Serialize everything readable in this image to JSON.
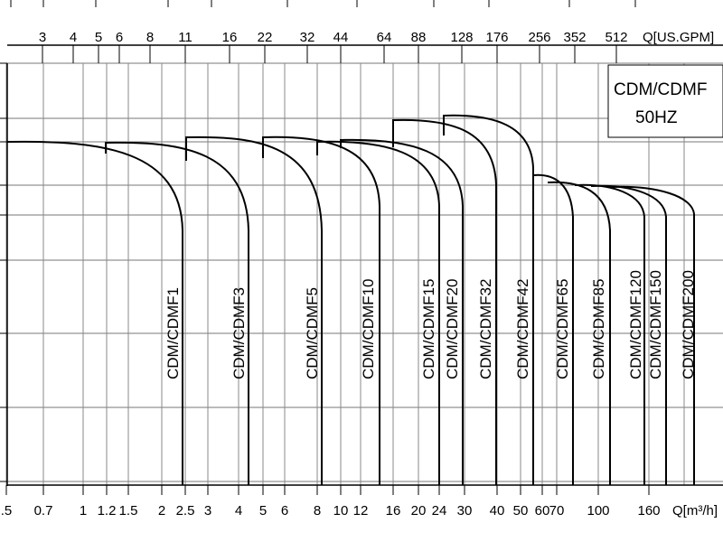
{
  "chart_data": {
    "type": "line",
    "title": "CDM/CDMF",
    "subtitle": "50HZ",
    "scale": "log",
    "top_axis": {
      "label": "Q[US.GPM]",
      "ticks": [
        "3",
        "4",
        "5",
        "6",
        "8",
        "11",
        "16",
        "22",
        "32",
        "44",
        "64",
        "88",
        "128",
        "176",
        "256",
        "352",
        "512"
      ]
    },
    "bottom_axis": {
      "label": "Q[m³/h]",
      "ticks": [
        ".5",
        "0.7",
        "1",
        "1.2",
        "1.5",
        "2",
        "2.5",
        "3",
        "4",
        "5",
        "6",
        "8",
        "10",
        "12",
        "16",
        "20",
        "24",
        "30",
        "40",
        "50",
        "60",
        "70",
        "100",
        "160"
      ]
    },
    "grid": true,
    "series": [
      {
        "name": "CDM/CDMF1",
        "end_flow": 2.5
      },
      {
        "name": "CDM/CDMF3",
        "end_flow": 4.5
      },
      {
        "name": "CDM/CDMF5",
        "end_flow": 8
      },
      {
        "name": "CDM/CDMF10",
        "end_flow": 14
      },
      {
        "name": "CDM/CDMF15",
        "end_flow": 20
      },
      {
        "name": "CDM/CDMF20",
        "end_flow": 24
      },
      {
        "name": "CDM/CDMF32",
        "end_flow": 40
      },
      {
        "name": "CDM/CDMF42",
        "end_flow": 56
      },
      {
        "name": "CDM/CDMF65",
        "end_flow": 80
      },
      {
        "name": "CDM/CDMF85",
        "end_flow": 110
      },
      {
        "name": "CDM/CDMF120",
        "end_flow": 150
      },
      {
        "name": "CDM/CDMF150",
        "end_flow": 170
      },
      {
        "name": "CDM/CDMF200",
        "end_flow": 220
      }
    ]
  }
}
